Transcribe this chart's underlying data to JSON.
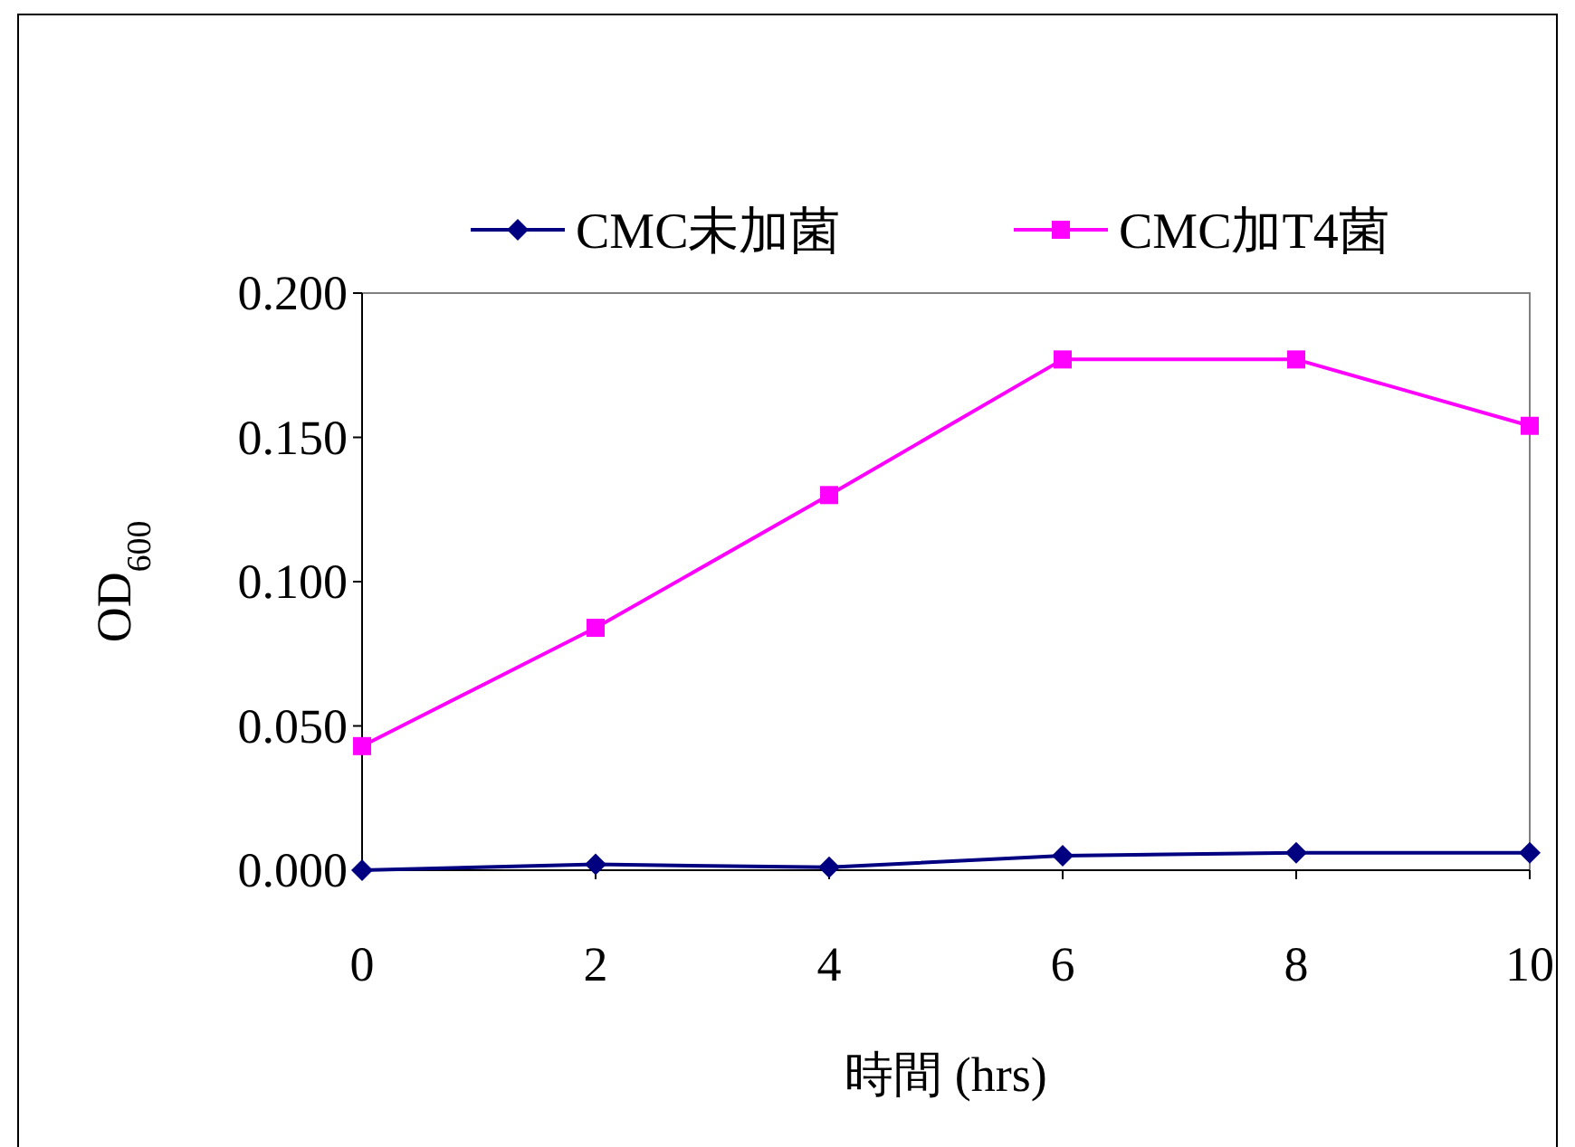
{
  "chart_data": {
    "type": "line",
    "xlabel": "時間 (hrs)",
    "ylabel": "OD$_{600}$",
    "x": [
      0,
      2,
      4,
      6,
      8,
      10
    ],
    "series": [
      {
        "name": "CMC未加菌",
        "color": "#000080",
        "marker": "diamond",
        "values": [
          0.0,
          0.002,
          0.001,
          0.005,
          0.006,
          0.006
        ]
      },
      {
        "name": "CMC加T4菌",
        "color": "#ff00ff",
        "marker": "square",
        "values": [
          0.043,
          0.084,
          0.13,
          0.177,
          0.177,
          0.154
        ]
      }
    ],
    "xlim": [
      0,
      10
    ],
    "xticks": [
      0,
      2,
      4,
      6,
      8,
      10
    ],
    "ylim": [
      0,
      0.2
    ],
    "yticks": [
      {
        "value": 0,
        "label": "0.000"
      },
      {
        "value": 0.05,
        "label": "0.050"
      },
      {
        "value": 0.1,
        "label": "0.100"
      },
      {
        "value": 0.15,
        "label": "0.150"
      },
      {
        "value": 0.2,
        "label": "0.200"
      }
    ],
    "grid": false,
    "legend": "top",
    "line_style": "solid"
  }
}
